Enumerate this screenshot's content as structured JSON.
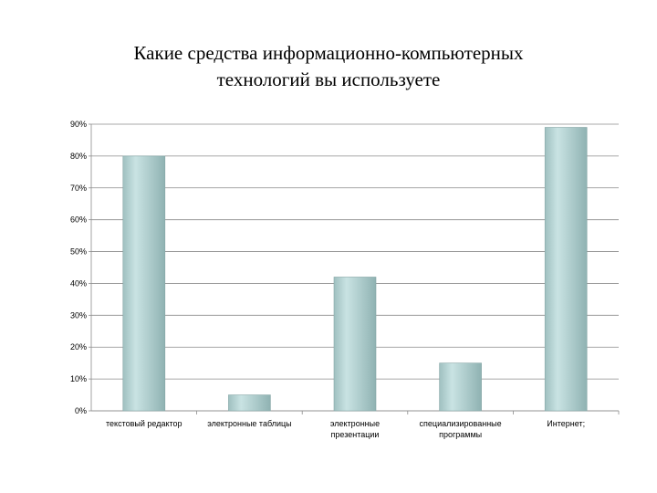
{
  "chart_data": {
    "type": "bar",
    "title": [
      "Какие средства информационно-компьютерных",
      "технологий вы используете"
    ],
    "categories": [
      [
        "текстовый редактор"
      ],
      [
        "электронные таблицы"
      ],
      [
        "электронные",
        "презентации"
      ],
      [
        "специализированные",
        "программы"
      ],
      [
        "Интернет;"
      ]
    ],
    "values": [
      80,
      5,
      42,
      15,
      89
    ],
    "ylim": [
      0,
      90
    ],
    "yticks": [
      "0%",
      "10%",
      "20%",
      "30%",
      "40%",
      "50%",
      "60%",
      "70%",
      "80%",
      "90%"
    ],
    "grid": true,
    "bar_color": "#a9cccc"
  }
}
